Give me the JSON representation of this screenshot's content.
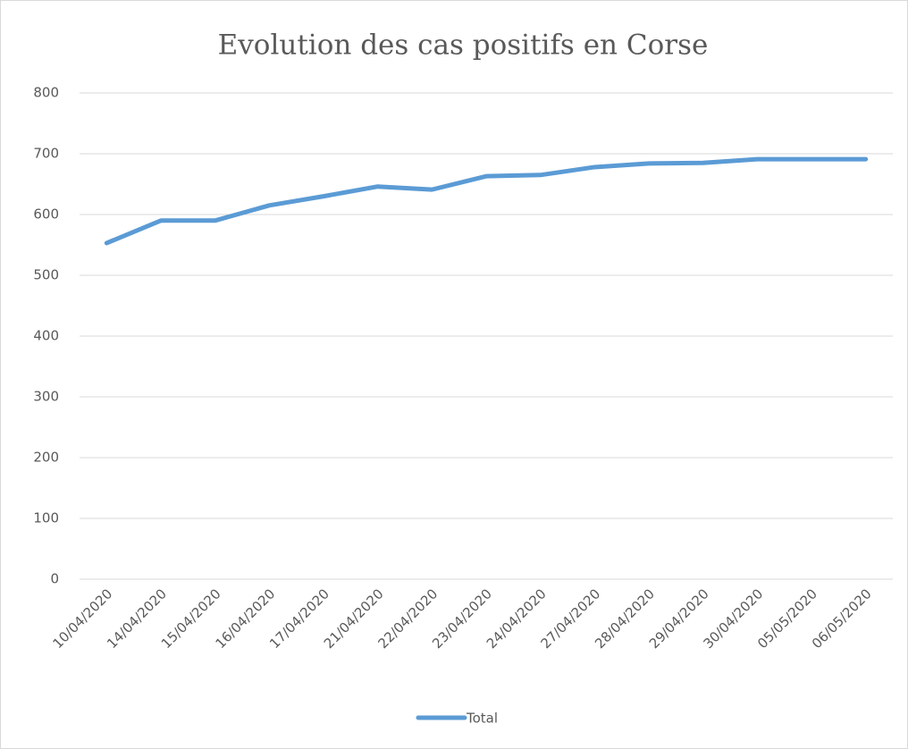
{
  "chart_data": {
    "type": "line",
    "title": "Evolution des cas positifs en Corse",
    "categories": [
      "10/04/2020",
      "14/04/2020",
      "15/04/2020",
      "16/04/2020",
      "17/04/2020",
      "21/04/2020",
      "22/04/2020",
      "23/04/2020",
      "24/04/2020",
      "27/04/2020",
      "28/04/2020",
      "29/04/2020",
      "30/04/2020",
      "05/05/2020",
      "06/05/2020"
    ],
    "series": [
      {
        "name": "Total",
        "color": "#5b9bd5",
        "values": [
          553,
          590,
          590,
          615,
          630,
          646,
          641,
          663,
          665,
          678,
          684,
          685,
          691,
          691,
          691
        ]
      }
    ],
    "ylim": [
      0,
      800
    ],
    "yticks": [
      0,
      100,
      200,
      300,
      400,
      500,
      600,
      700,
      800
    ],
    "grid": true,
    "legend": "bottom"
  }
}
